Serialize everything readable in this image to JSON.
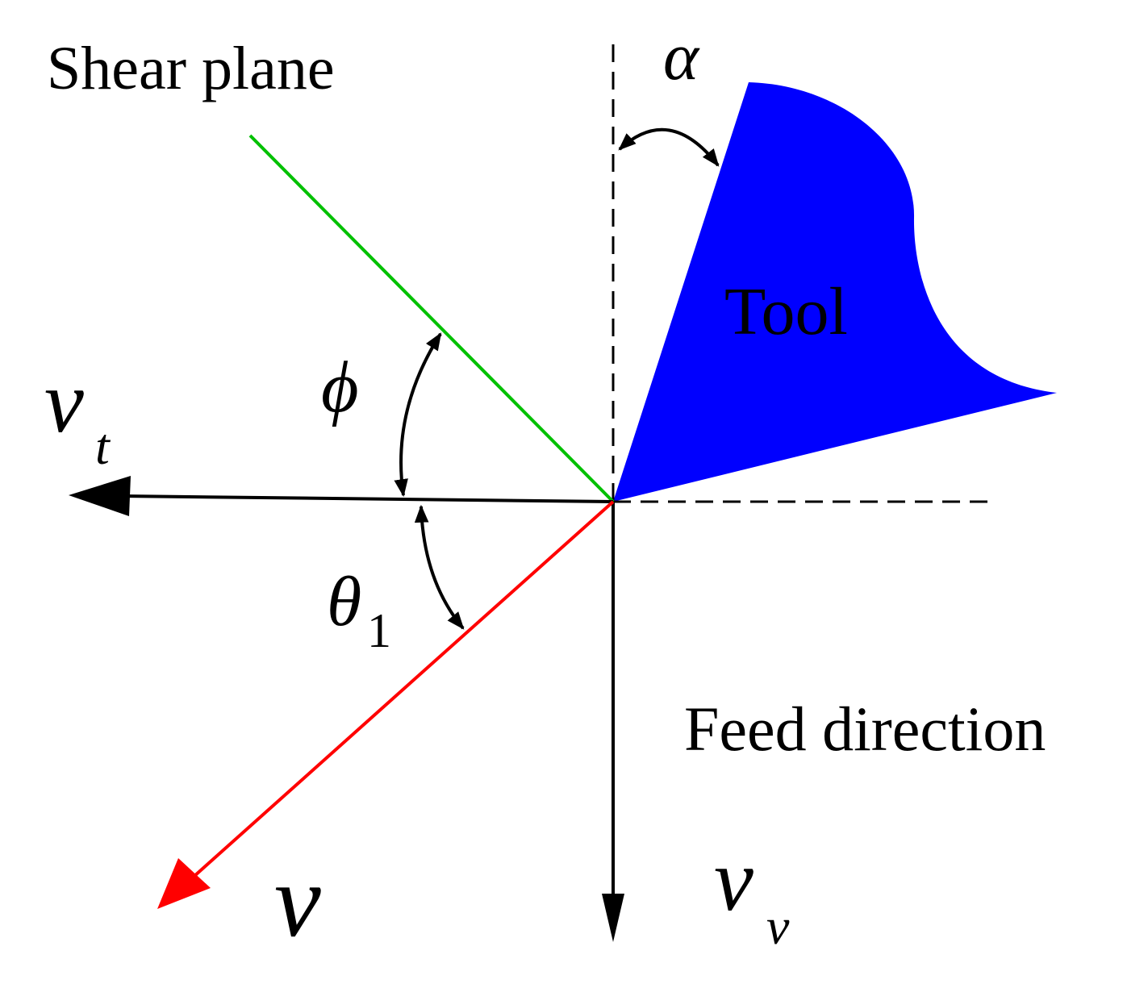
{
  "labels": {
    "shear_plane": "Shear plane",
    "tool": "Tool",
    "feed_direction": "Feed direction",
    "alpha": "α",
    "phi": "ϕ",
    "theta": "θ",
    "theta_sub": "1",
    "v": "v",
    "vt": "v",
    "vt_sub": "t",
    "vv": "v",
    "vv_sub": "v"
  },
  "colors": {
    "tool": "#0000ff",
    "shear_plane": "#00c000",
    "velocity": "#ff0000",
    "lines": "#000000"
  }
}
